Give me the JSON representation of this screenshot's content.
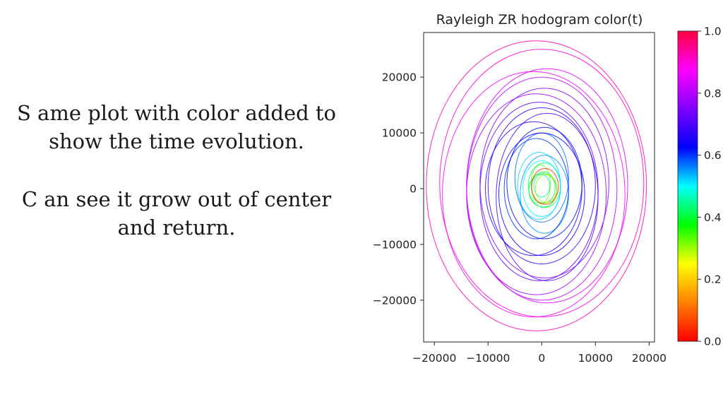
{
  "slide": {
    "note_line_1": "S ame plot with color added to",
    "note_line_2": "show the time evolution.",
    "note_line_3": "C an see it grow out of center",
    "note_line_4": "and return."
  },
  "chart_data": {
    "type": "line",
    "title": "Rayleigh ZR hodogram color(t)",
    "xlabel": "",
    "ylabel": "",
    "xlim": [
      -22000,
      21000
    ],
    "ylim": [
      -27500,
      28000
    ],
    "xticks": [
      -20000,
      -10000,
      0,
      10000,
      20000
    ],
    "xtick_labels": [
      "−20000",
      "−10000",
      "0",
      "10000",
      "20000"
    ],
    "yticks": [
      20000,
      10000,
      0,
      -10000,
      -20000
    ],
    "ytick_labels": [
      "20000",
      "10000",
      "0",
      "−10000",
      "−20000"
    ],
    "colorbar": {
      "ticks": [
        1.0,
        0.8,
        0.6,
        0.4,
        0.2,
        0.0
      ],
      "tick_labels": [
        "1.0",
        "0.8",
        "0.6",
        "0.4",
        "0.2",
        "0.0"
      ],
      "colormap": "gist_rainbow",
      "stops": [
        "#ff0000",
        "#ff8000",
        "#ffff00",
        "#00ff00",
        "#00ffff",
        "#0000ff",
        "#8000ff",
        "#ff00ff",
        "#ff0040"
      ]
    },
    "grid": false,
    "loops": [
      {
        "t": 0.46,
        "rx": 1500,
        "ry": 2000,
        "cx": 0,
        "cy": 500
      },
      {
        "t": 0.4,
        "rx": 2200,
        "ry": 2800,
        "cx": 300,
        "cy": 200
      },
      {
        "t": 0.33,
        "rx": 1800,
        "ry": 3500,
        "cx": -200,
        "cy": 800
      },
      {
        "t": 0.38,
        "rx": 2600,
        "ry": 3000,
        "cx": 200,
        "cy": -300
      },
      {
        "t": 0.44,
        "rx": 3000,
        "ry": 4000,
        "cx": 500,
        "cy": 600
      },
      {
        "t": 0.3,
        "rx": 2000,
        "ry": 2500,
        "cx": 800,
        "cy": 0
      },
      {
        "t": 0.05,
        "rx": 2500,
        "ry": 3200,
        "cx": 600,
        "cy": 400
      },
      {
        "t": 0.5,
        "rx": 3500,
        "ry": 5000,
        "cx": 0,
        "cy": 0
      },
      {
        "t": 0.52,
        "rx": 4000,
        "ry": 6000,
        "cx": -500,
        "cy": 500
      },
      {
        "t": 0.55,
        "rx": 4500,
        "ry": 7000,
        "cx": 500,
        "cy": -1000
      },
      {
        "t": 0.57,
        "rx": 5000,
        "ry": 8000,
        "cx": 0,
        "cy": 2000
      },
      {
        "t": 0.6,
        "rx": 6000,
        "ry": 9000,
        "cx": -1000,
        "cy": 0
      },
      {
        "t": 0.62,
        "rx": 7000,
        "ry": 10000,
        "cx": 500,
        "cy": 1000
      },
      {
        "t": 0.64,
        "rx": 8000,
        "ry": 11000,
        "cx": 0,
        "cy": -1000
      },
      {
        "t": 0.66,
        "rx": 9000,
        "ry": 12000,
        "cx": -1500,
        "cy": 0
      },
      {
        "t": 0.68,
        "rx": 10000,
        "ry": 14000,
        "cx": 0,
        "cy": 500
      },
      {
        "t": 0.7,
        "rx": 9500,
        "ry": 15000,
        "cx": 1000,
        "cy": -1500
      },
      {
        "t": 0.72,
        "rx": 11000,
        "ry": 16000,
        "cx": -500,
        "cy": -500
      },
      {
        "t": 0.75,
        "rx": 12000,
        "ry": 17000,
        "cx": 500,
        "cy": 1000
      },
      {
        "t": 0.78,
        "rx": 13000,
        "ry": 18000,
        "cx": -1000,
        "cy": -1000
      },
      {
        "t": 0.81,
        "rx": 14000,
        "ry": 20000,
        "cx": 0,
        "cy": 0
      },
      {
        "t": 0.84,
        "rx": 15000,
        "ry": 21000,
        "cx": 1000,
        "cy": 500
      },
      {
        "t": 0.87,
        "rx": 17000,
        "ry": 22000,
        "cx": -1500,
        "cy": -1000
      },
      {
        "t": 0.9,
        "rx": 19000,
        "ry": 24000,
        "cx": 0,
        "cy": 1000
      },
      {
        "t": 0.93,
        "rx": 20500,
        "ry": 26000,
        "cx": -1000,
        "cy": 500
      }
    ]
  }
}
